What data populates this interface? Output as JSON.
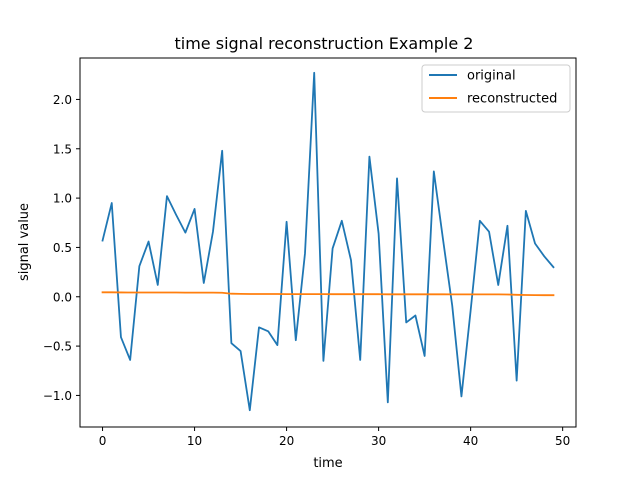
{
  "chart_data": {
    "type": "line",
    "title": "time signal reconstruction Example 2",
    "xlabel": "time",
    "ylabel": "signal value",
    "xlim": [
      -2.45,
      51.45
    ],
    "ylim": [
      -1.32,
      2.42
    ],
    "xticks": [
      0,
      10,
      20,
      30,
      40,
      50
    ],
    "yticks": [
      -1.0,
      -0.5,
      0.0,
      0.5,
      1.0,
      1.5,
      2.0
    ],
    "xtick_labels": [
      "0",
      "10",
      "20",
      "30",
      "40",
      "50"
    ],
    "ytick_labels": [
      "−1.0",
      "−0.5",
      "0.0",
      "0.5",
      "1.0",
      "1.5",
      "2.0"
    ],
    "grid": false,
    "legend_position": "top-right",
    "series": [
      {
        "name": "original",
        "color": "#1f77b4",
        "x": [
          0,
          1,
          2,
          3,
          4,
          5,
          6,
          7,
          8,
          9,
          10,
          11,
          12,
          13,
          14,
          15,
          16,
          17,
          18,
          19,
          20,
          21,
          22,
          23,
          24,
          25,
          26,
          27,
          28,
          29,
          30,
          31,
          32,
          33,
          34,
          35,
          36,
          37,
          38,
          39,
          40,
          41,
          42,
          43,
          44,
          45,
          46,
          47,
          48,
          49
        ],
        "values": [
          0.57,
          0.95,
          -0.41,
          -0.64,
          0.31,
          0.56,
          0.12,
          1.02,
          0.83,
          0.65,
          0.89,
          0.14,
          0.66,
          1.48,
          -0.47,
          -0.55,
          -1.15,
          -0.31,
          -0.35,
          -0.49,
          0.76,
          -0.44,
          0.44,
          2.27,
          -0.65,
          0.49,
          0.77,
          0.37,
          -0.64,
          1.42,
          0.64,
          -1.07,
          1.2,
          -0.26,
          -0.19,
          -0.6,
          1.27,
          0.58,
          -0.09,
          -1.01,
          -0.14,
          0.77,
          0.66,
          0.12,
          0.72,
          -0.85,
          0.87,
          0.54,
          0.41,
          0.3
        ]
      },
      {
        "name": "reconstructed",
        "color": "#ff7f0e",
        "x": [
          0,
          1,
          2,
          3,
          4,
          5,
          6,
          7,
          8,
          9,
          10,
          11,
          12,
          13,
          14,
          15,
          16,
          17,
          18,
          19,
          20,
          21,
          22,
          23,
          24,
          25,
          26,
          27,
          28,
          29,
          30,
          31,
          32,
          33,
          34,
          35,
          36,
          37,
          38,
          39,
          40,
          41,
          42,
          43,
          44,
          45,
          46,
          47,
          48,
          49
        ],
        "values": [
          0.045,
          0.045,
          0.044,
          0.043,
          0.043,
          0.043,
          0.043,
          0.043,
          0.043,
          0.042,
          0.042,
          0.042,
          0.042,
          0.041,
          0.031,
          0.029,
          0.028,
          0.028,
          0.028,
          0.028,
          0.027,
          0.027,
          0.027,
          0.027,
          0.027,
          0.026,
          0.026,
          0.026,
          0.026,
          0.026,
          0.026,
          0.025,
          0.025,
          0.025,
          0.025,
          0.025,
          0.025,
          0.025,
          0.024,
          0.024,
          0.024,
          0.024,
          0.024,
          0.024,
          0.023,
          0.02,
          0.018,
          0.017,
          0.016,
          0.016
        ]
      }
    ]
  }
}
